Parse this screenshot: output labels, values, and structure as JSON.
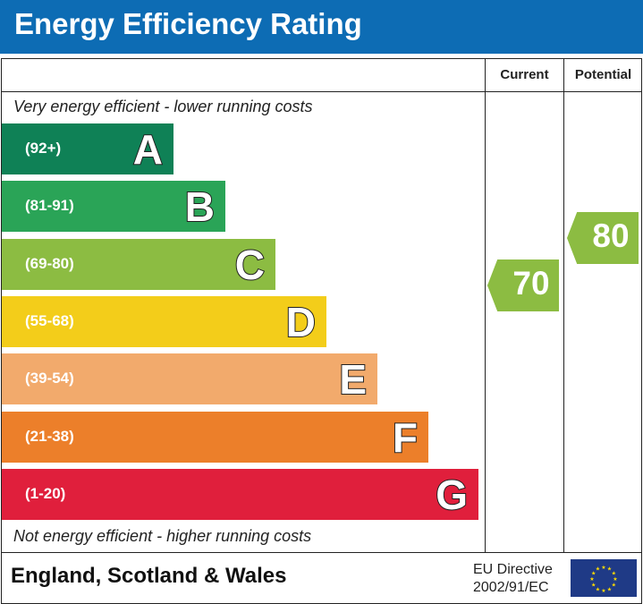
{
  "title": "Energy Efficiency Rating",
  "columns": {
    "current": "Current",
    "potential": "Potential"
  },
  "top_note": "Very energy efficient - lower running costs",
  "bottom_note": "Not energy efficient - higher running costs",
  "footer": {
    "region": "England, Scotland & Wales",
    "directive_line1": "EU Directive",
    "directive_line2": "2002/91/EC"
  },
  "chart_data": {
    "type": "bar",
    "bands": [
      {
        "letter": "A",
        "range": "(92+)",
        "color": "#0f8156"
      },
      {
        "letter": "B",
        "range": "(81-91)",
        "color": "#2aa457"
      },
      {
        "letter": "C",
        "range": "(69-80)",
        "color": "#8cbc42"
      },
      {
        "letter": "D",
        "range": "(55-68)",
        "color": "#f3cd1a"
      },
      {
        "letter": "E",
        "range": "(39-54)",
        "color": "#f2aa6c"
      },
      {
        "letter": "F",
        "range": "(21-38)",
        "color": "#ec7f2a"
      },
      {
        "letter": "G",
        "range": "(1-20)",
        "color": "#e01f3c"
      }
    ],
    "current": {
      "value": "70",
      "band": "C",
      "color": "#8cbc42"
    },
    "potential": {
      "value": "80",
      "band": "C",
      "color": "#8cbc42"
    }
  }
}
